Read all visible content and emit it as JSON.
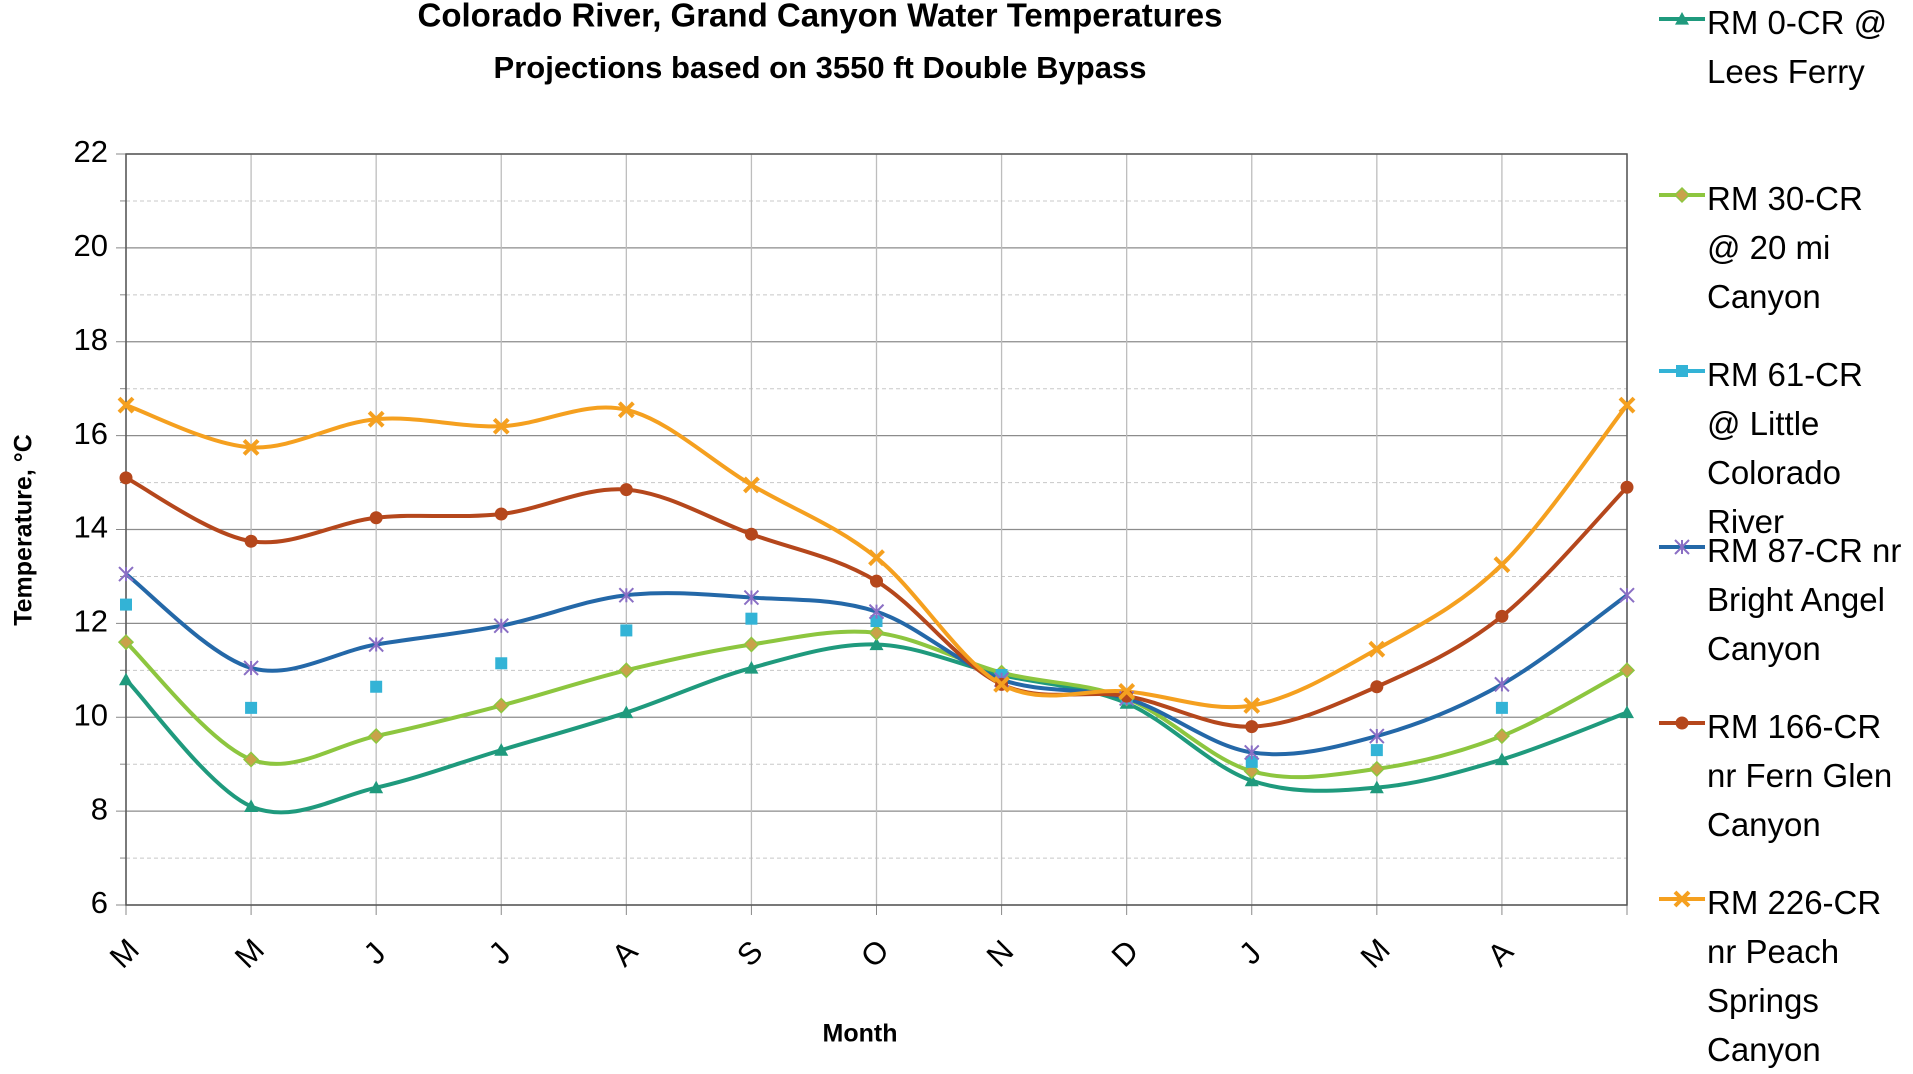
{
  "chart_data": {
    "type": "line",
    "title": "Colorado River, Grand Canyon Water Temperatures",
    "subtitle": "Projections based on 3550 ft Double Bypass",
    "x_label": "Month",
    "y_label": "Temperature, °C",
    "categories": [
      "M",
      "M",
      "J",
      "J",
      "A",
      "S",
      "O",
      "N",
      "D",
      "J",
      "M",
      "A",
      null
    ],
    "ylim": [
      6,
      22
    ],
    "yticks": [
      6,
      8,
      10,
      12,
      14,
      16,
      18,
      20,
      22
    ],
    "grid": true,
    "smooth": true,
    "legend": "right",
    "series": [
      {
        "name": "RM 0-CR @ Lees Ferry",
        "color": "#1f9a7d",
        "marker": "triangle",
        "line": true,
        "values": [
          10.8,
          8.1,
          8.5,
          9.3,
          10.1,
          11.05,
          11.55,
          10.9,
          10.3,
          8.65,
          8.5,
          9.1,
          10.1
        ]
      },
      {
        "name": "RM 30-CR @ 20 mi Canyon",
        "color": "#8dc63f",
        "marker": "diamond",
        "line": true,
        "values": [
          11.6,
          9.1,
          9.6,
          10.25,
          11.0,
          11.55,
          11.8,
          10.95,
          10.4,
          8.85,
          8.9,
          9.6,
          11.0
        ]
      },
      {
        "name": "RM 61-CR @ Little Colorado River",
        "color": "#33b3d6",
        "marker": "square",
        "line": false,
        "values": [
          12.4,
          10.2,
          10.65,
          11.15,
          11.85,
          12.1,
          12.05,
          10.9,
          10.4,
          9.05,
          9.3,
          10.2,
          null
        ]
      },
      {
        "name": "RM 87-CR nr Bright Angel Canyon",
        "color": "#2468a8",
        "marker": "star",
        "line": true,
        "values": [
          13.05,
          11.05,
          11.55,
          11.95,
          12.6,
          12.55,
          12.25,
          10.8,
          10.4,
          9.25,
          9.6,
          10.7,
          12.6
        ]
      },
      {
        "name": "RM 166-CR nr Fern Glen Canyon",
        "color": "#b5471c",
        "marker": "circle",
        "line": true,
        "values": [
          15.1,
          13.75,
          14.25,
          14.33,
          14.85,
          13.9,
          12.9,
          10.7,
          10.45,
          9.8,
          10.65,
          12.15,
          14.9
        ]
      },
      {
        "name": "RM 226-CR nr Peach Springs Canyon",
        "color": "#f5a01f",
        "marker": "cross",
        "line": true,
        "values": [
          16.65,
          15.75,
          16.35,
          16.2,
          16.55,
          14.95,
          13.4,
          10.7,
          10.55,
          10.25,
          11.45,
          13.25,
          16.65
        ]
      }
    ]
  }
}
